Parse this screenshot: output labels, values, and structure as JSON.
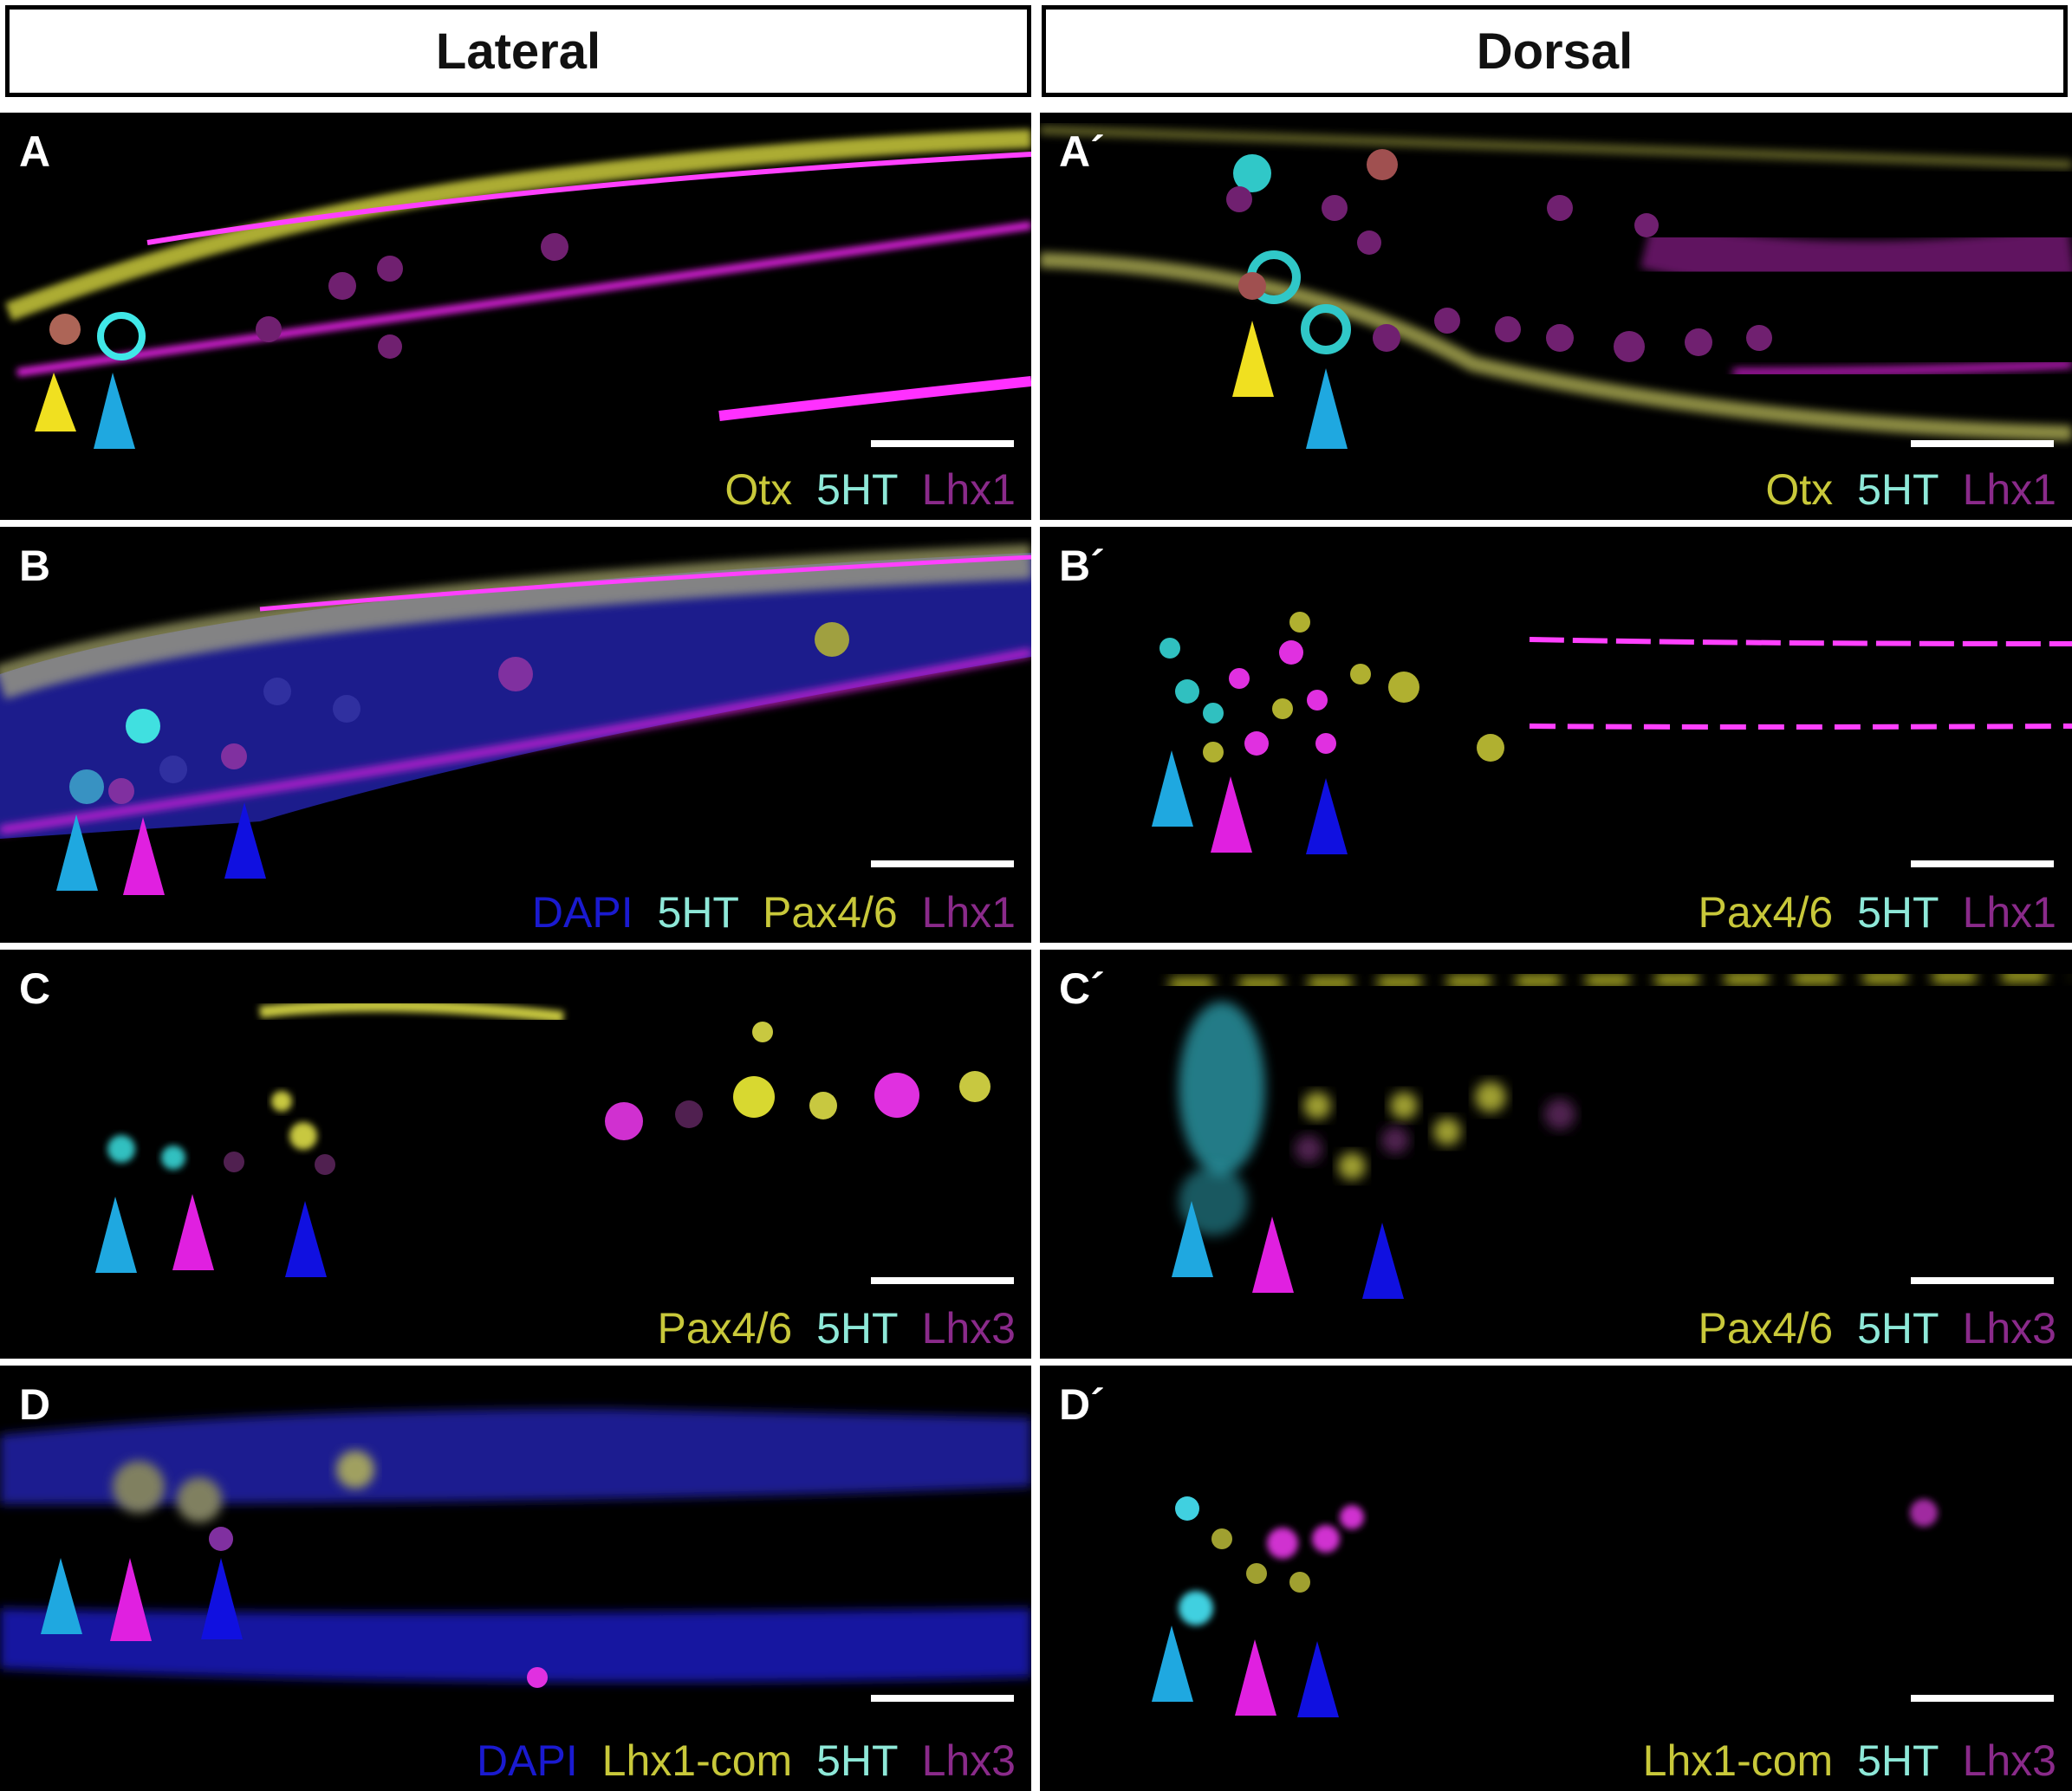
{
  "headers": {
    "left": "Lateral",
    "right": "Dorsal"
  },
  "colors": {
    "yellow": "#c8c83a",
    "cyan": "#8ee8d8",
    "magenta": "#8a2a8a",
    "blue": "#1a1ad0",
    "arrow_yellow": "#f0e020",
    "arrow_cyan": "#1fa8e0",
    "arrow_magenta": "#e020e0",
    "arrow_blue": "#1010e0"
  },
  "panels": {
    "A": {
      "label": "A",
      "legend": [
        "Otx",
        "5HT",
        "Lhx1"
      ]
    },
    "A2": {
      "label": "A´",
      "legend": [
        "Otx",
        "5HT",
        "Lhx1"
      ]
    },
    "B": {
      "label": "B",
      "legend": [
        "DAPI",
        "5HT",
        "Pax4/6",
        "Lhx1"
      ]
    },
    "B2": {
      "label": "B´",
      "legend": [
        "Pax4/6",
        "5HT",
        "Lhx1"
      ]
    },
    "C": {
      "label": "C",
      "legend": [
        "Pax4/6",
        "5HT",
        "Lhx3"
      ]
    },
    "C2": {
      "label": "C´",
      "legend": [
        "Pax4/6",
        "5HT",
        "Lhx3"
      ]
    },
    "D": {
      "label": "D",
      "legend": [
        "DAPI",
        "Lhx1-com",
        "5HT",
        "Lhx3"
      ]
    },
    "D2": {
      "label": "D´",
      "legend": [
        "Lhx1-com",
        "5HT",
        "Lhx3"
      ]
    }
  }
}
